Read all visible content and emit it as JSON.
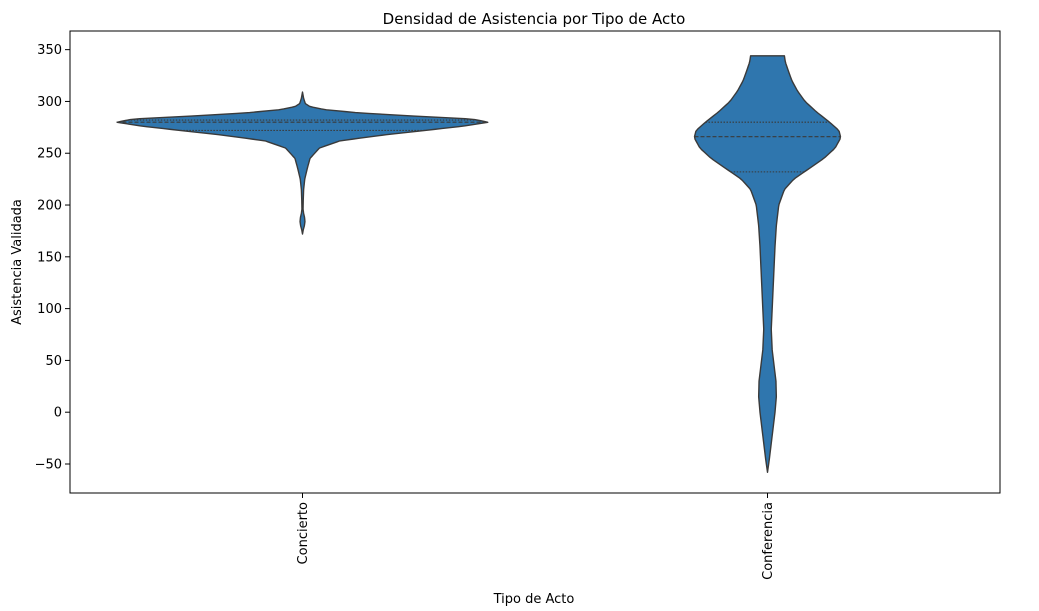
{
  "chart_data": {
    "type": "violin",
    "title": "Densidad de Asistencia por Tipo de Acto",
    "xlabel": "Tipo de Acto",
    "ylabel": "Asistencia Validada",
    "categories": [
      "Concierto",
      "Conferencia"
    ],
    "ylim": [
      -78,
      368
    ],
    "yticks": [
      -50,
      0,
      50,
      100,
      150,
      200,
      250,
      300,
      350
    ],
    "ytick_labels": [
      "−50",
      "0",
      "50",
      "100",
      "150",
      "200",
      "250",
      "300",
      "350"
    ],
    "grid": false,
    "fill_color": "#2f76ae",
    "edge_color": "#3a3a3a",
    "violins": [
      {
        "category": "Concierto",
        "min": 172,
        "max": 309,
        "quartiles": [
          272,
          280,
          282
        ],
        "density_profile": [
          [
            172,
            0.0
          ],
          [
            176,
            0.004
          ],
          [
            180,
            0.01
          ],
          [
            184,
            0.013
          ],
          [
            188,
            0.011
          ],
          [
            192,
            0.006
          ],
          [
            196,
            0.003
          ],
          [
            205,
            0.004
          ],
          [
            215,
            0.006
          ],
          [
            225,
            0.012
          ],
          [
            235,
            0.025
          ],
          [
            245,
            0.04
          ],
          [
            255,
            0.09
          ],
          [
            262,
            0.2
          ],
          [
            268,
            0.45
          ],
          [
            272,
            0.65
          ],
          [
            276,
            0.85
          ],
          [
            280,
            0.99
          ],
          [
            283,
            0.9
          ],
          [
            286,
            0.58
          ],
          [
            289,
            0.3
          ],
          [
            292,
            0.12
          ],
          [
            295,
            0.04
          ],
          [
            298,
            0.015
          ],
          [
            303,
            0.006
          ],
          [
            309,
            0.0
          ]
        ]
      },
      {
        "category": "Conferencia",
        "min": -58,
        "max": 344,
        "quartiles": [
          232,
          266,
          280
        ],
        "density_profile": [
          [
            -58,
            0.0
          ],
          [
            -45,
            0.01
          ],
          [
            -30,
            0.02
          ],
          [
            -15,
            0.03
          ],
          [
            0,
            0.04
          ],
          [
            15,
            0.047
          ],
          [
            30,
            0.045
          ],
          [
            45,
            0.035
          ],
          [
            60,
            0.025
          ],
          [
            80,
            0.02
          ],
          [
            100,
            0.025
          ],
          [
            120,
            0.03
          ],
          [
            140,
            0.035
          ],
          [
            160,
            0.04
          ],
          [
            180,
            0.047
          ],
          [
            200,
            0.06
          ],
          [
            215,
            0.09
          ],
          [
            225,
            0.14
          ],
          [
            235,
            0.22
          ],
          [
            245,
            0.3
          ],
          [
            255,
            0.36
          ],
          [
            265,
            0.39
          ],
          [
            272,
            0.38
          ],
          [
            280,
            0.33
          ],
          [
            290,
            0.26
          ],
          [
            300,
            0.2
          ],
          [
            310,
            0.16
          ],
          [
            320,
            0.13
          ],
          [
            330,
            0.11
          ],
          [
            338,
            0.095
          ],
          [
            344,
            0.09
          ]
        ]
      }
    ]
  }
}
